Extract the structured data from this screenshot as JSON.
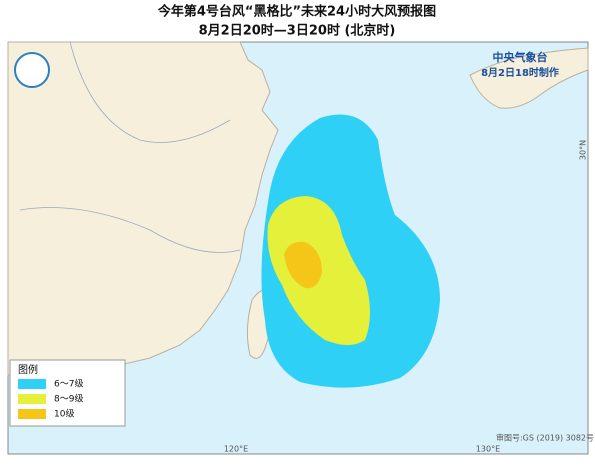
{
  "header": {
    "title": "今年第4号台风“黑格比”未来24小时大风预报图",
    "subtitle": "8月2日20时—3日20时 (北京时)"
  },
  "agency": {
    "name": "中央气象台",
    "made": "8月2日18时制作"
  },
  "legend": {
    "title": "图例",
    "items": [
      {
        "label": "6～7级",
        "color": "#2fd0f5"
      },
      {
        "label": "8～9级",
        "color": "#e4f03a"
      },
      {
        "label": "10级",
        "color": "#f5c518"
      }
    ]
  },
  "axes": {
    "lon": [
      "120°E",
      "130°E"
    ],
    "lat": [
      "30°N"
    ]
  },
  "footer": "审图号:GS (2019) 3082号"
}
